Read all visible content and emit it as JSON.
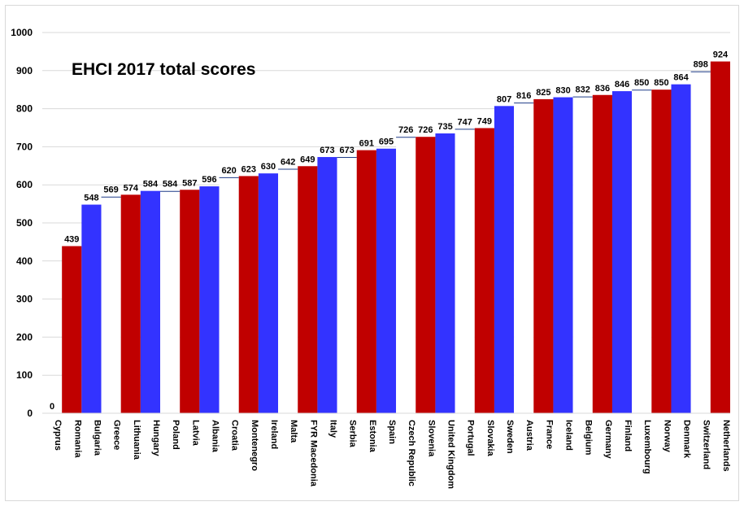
{
  "chart_data": {
    "type": "bar",
    "title": "EHCI 2017 total scores",
    "ylim": [
      0,
      1000
    ],
    "yticks": [
      0,
      100,
      200,
      300,
      400,
      500,
      600,
      700,
      800,
      900,
      1000
    ],
    "grid": true,
    "colors": {
      "red": "#c00000",
      "blue": "#3333ff",
      "white": "#ffffff",
      "outline": "#1f3c88"
    },
    "categories": [
      "Cyprus",
      "Romania",
      "Bulgaria",
      "Greece",
      "Lithuania",
      "Hungary",
      "Poland",
      "Latvia",
      "Albania",
      "Croatia",
      "Montenegro",
      "Ireland",
      "Malta",
      "FYR Macedonia",
      "Italy",
      "Serbia",
      "Estonia",
      "Spain",
      "Czech Republic",
      "Slovenia",
      "United Kingdom",
      "Portugal",
      "Slovakia",
      "Sweden",
      "Austria",
      "France",
      "Iceland",
      "Belgium",
      "Germany",
      "Finland",
      "Luxembourg",
      "Norway",
      "Denmark",
      "Switzerland",
      "Netherlands"
    ],
    "values": [
      0,
      439,
      548,
      569,
      574,
      584,
      584,
      587,
      596,
      620,
      623,
      630,
      642,
      649,
      673,
      673,
      691,
      695,
      726,
      726,
      735,
      747,
      749,
      807,
      816,
      825,
      830,
      832,
      836,
      846,
      850,
      850,
      864,
      898,
      924
    ],
    "bar_colors": [
      "white",
      "red",
      "blue",
      "white",
      "red",
      "blue",
      "white",
      "red",
      "blue",
      "white",
      "red",
      "blue",
      "white",
      "red",
      "blue",
      "white",
      "red",
      "blue",
      "white",
      "red",
      "blue",
      "white",
      "red",
      "blue",
      "white",
      "red",
      "blue",
      "white",
      "red",
      "blue",
      "white",
      "red",
      "blue",
      "white",
      "red"
    ]
  }
}
